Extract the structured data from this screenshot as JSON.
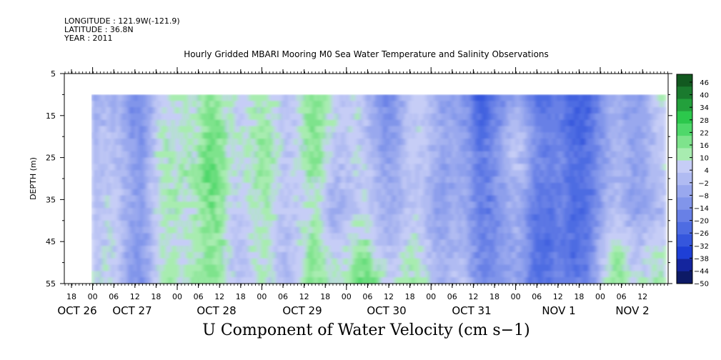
{
  "meta": {
    "longitude": "LONGITUDE : 121.9W(-121.9)",
    "latitude": "LATITUDE : 36.8N",
    "year": "YEAR : 2011"
  },
  "chart_data": {
    "type": "heatmap",
    "title": "Hourly Gridded MBARI Mooring M0 Sea Water Temperature and Salinity Observations",
    "variable_label": "U Component of Water Velocity (cm s−1)",
    "ylabel": "DEPTH (m)",
    "y_ticks": [
      "5",
      "15",
      "25",
      "35",
      "45",
      "55"
    ],
    "ylim": [
      5,
      55
    ],
    "y_inverted": true,
    "data_depth_range": [
      10,
      55
    ],
    "x_hour_labels": [
      "18",
      "00",
      "06",
      "12",
      "18",
      "00",
      "06",
      "12",
      "18",
      "00",
      "06",
      "12",
      "18",
      "00",
      "06",
      "12",
      "18",
      "00",
      "06",
      "12",
      "18",
      "00",
      "06",
      "12",
      "18",
      "00",
      "06",
      "12"
    ],
    "x_day_labels": [
      "OCT 26",
      "OCT 27",
      "OCT 28",
      "OCT 29",
      "OCT 30",
      "OCT 31",
      "NOV  1",
      "NOV  2"
    ],
    "colorbar_labels": [
      "46",
      "40",
      "34",
      "28",
      "22",
      "16",
      "10",
      "4",
      "−2",
      "−8",
      "−14",
      "−20",
      "−26",
      "−32",
      "−38",
      "−44",
      "−50"
    ],
    "colorbar_range": [
      -50,
      52
    ],
    "colors": [
      "#0d1a66",
      "#14259e",
      "#1e3fd6",
      "#3556dd",
      "#4e6ce2",
      "#6880e6",
      "#8195ea",
      "#99a8ee",
      "#b0bbf2",
      "#c6cdf6",
      "#a8ecb0",
      "#7ee38c",
      "#4fd86a",
      "#2cc84c",
      "#23a03c",
      "#1a7a2e",
      "#125920"
    ],
    "profile_bands_cm_per_s": [
      {
        "time": "OCT 26 ~21h",
        "values": [
          4,
          6,
          8,
          10,
          12,
          14
        ]
      },
      {
        "time": "OCT 27 ~06h",
        "values": [
          -8,
          -6,
          -4,
          -2,
          -4,
          -6
        ]
      },
      {
        "time": "OCT 27 ~18h",
        "values": [
          10,
          12,
          14,
          12,
          10,
          14
        ]
      },
      {
        "time": "OCT 28 ~09h",
        "values": [
          14,
          16,
          16,
          14,
          12,
          12
        ]
      },
      {
        "time": "OCT 28 ~18h",
        "values": [
          8,
          12,
          12,
          10,
          8,
          6
        ]
      },
      {
        "time": "OCT 29 ~06h",
        "values": [
          10,
          8,
          4,
          -4,
          6,
          10
        ]
      },
      {
        "time": "OCT 29 ~18h",
        "values": [
          -6,
          -4,
          2,
          4,
          10,
          20
        ]
      },
      {
        "time": "OCT 30 ~06h",
        "values": [
          6,
          8,
          4,
          2,
          6,
          10
        ]
      },
      {
        "time": "OCT 31 ~00h",
        "values": [
          -28,
          -24,
          -20,
          -18,
          -16,
          -14
        ]
      },
      {
        "time": "OCT 31 ~12h",
        "values": [
          -8,
          4,
          2,
          -6,
          -8,
          -8
        ]
      },
      {
        "time": "NOV  1 ~03h",
        "values": [
          -26,
          -24,
          -22,
          -22,
          -24,
          -20
        ]
      },
      {
        "time": "NOV  1 ~18h",
        "values": [
          -10,
          -10,
          -8,
          -6,
          4,
          10
        ]
      },
      {
        "time": "NOV  2 ~12h",
        "values": [
          6,
          2,
          4,
          -4,
          6,
          10
        ]
      }
    ]
  }
}
